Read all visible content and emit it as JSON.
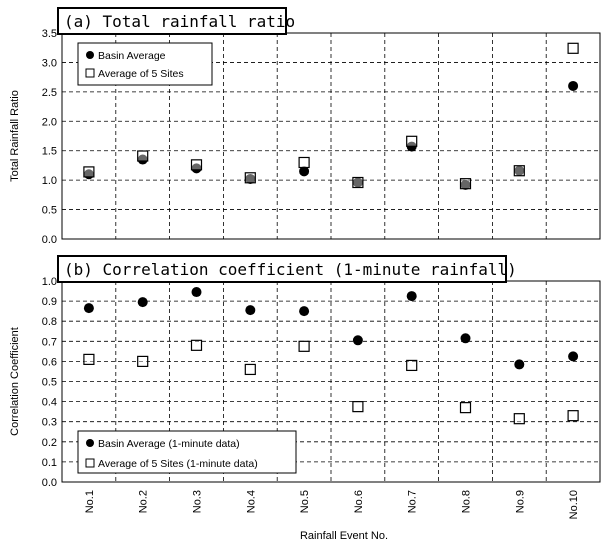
{
  "chart_data": [
    {
      "type": "scatter",
      "title": "(a) Total rainfall ratio",
      "ylabel": "Total Rainfall Ratio",
      "xlabel": "",
      "ylim": [
        0,
        3.5
      ],
      "yticks": [
        "0.0",
        "0.5",
        "1.0",
        "1.5",
        "2.0",
        "2.5",
        "3.0",
        "3.5"
      ],
      "categories": [
        "No.1",
        "No.2",
        "No.3",
        "No.4",
        "No.5",
        "No.6",
        "No.7",
        "No.8",
        "No.9",
        "No.10"
      ],
      "grid": true,
      "legend_position": "top-left",
      "series": [
        {
          "name": "Basin Average",
          "marker": "filled-circle",
          "values": [
            1.1,
            1.35,
            1.2,
            1.02,
            1.15,
            0.96,
            1.57,
            0.92,
            1.16,
            2.6
          ]
        },
        {
          "name": "Average of 5 Sites",
          "marker": "open-square",
          "values": [
            1.14,
            1.41,
            1.26,
            1.04,
            1.3,
            0.96,
            1.66,
            0.94,
            1.16,
            3.24
          ]
        }
      ]
    },
    {
      "type": "scatter",
      "title": "(b) Correlation coefficient (1-minute rainfall)",
      "ylabel": "Correlation Coefficient",
      "xlabel": "Rainfall Event No.",
      "ylim": [
        0,
        1
      ],
      "yticks": [
        "0.0",
        "0.1",
        "0.2",
        "0.3",
        "0.4",
        "0.5",
        "0.6",
        "0.7",
        "0.8",
        "0.9",
        "1.0"
      ],
      "categories": [
        "No.1",
        "No.2",
        "No.3",
        "No.4",
        "No.5",
        "No.6",
        "No.7",
        "No.8",
        "No.9",
        "No.10"
      ],
      "grid": true,
      "legend_position": "bottom-left",
      "series": [
        {
          "name": "Basin Average (1-minute data)",
          "marker": "filled-circle",
          "values": [
            0.865,
            0.895,
            0.945,
            0.855,
            0.85,
            0.705,
            0.925,
            0.715,
            0.585,
            0.625
          ]
        },
        {
          "name": "Average of 5 Sites (1-minute data)",
          "marker": "open-square",
          "values": [
            0.61,
            0.6,
            0.68,
            0.56,
            0.675,
            0.375,
            0.58,
            0.37,
            0.315,
            0.33
          ]
        }
      ]
    }
  ]
}
